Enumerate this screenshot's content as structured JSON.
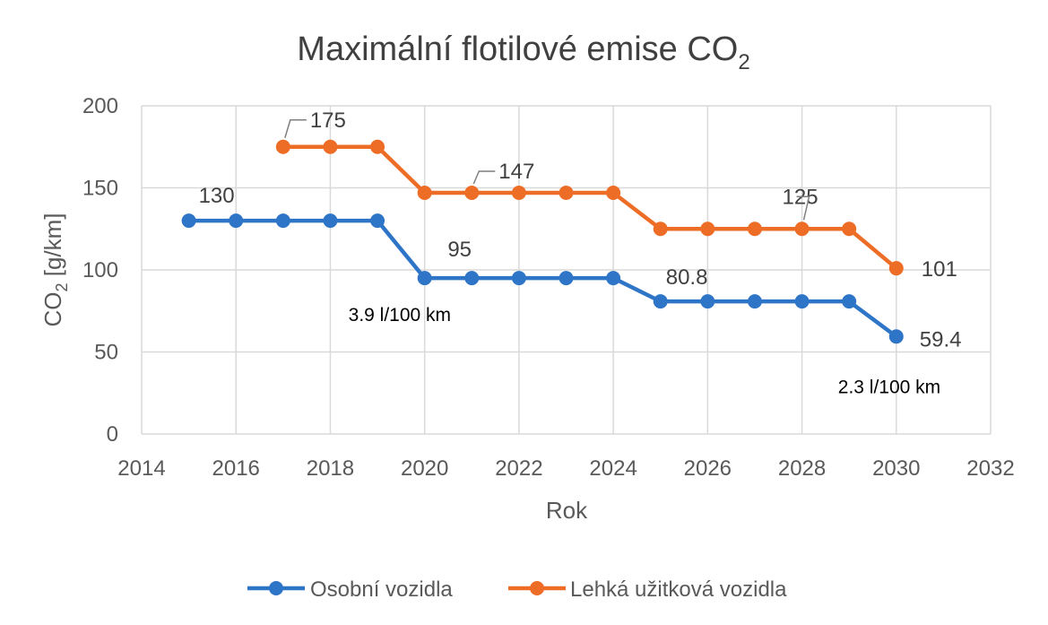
{
  "chart_data": {
    "type": "line",
    "title_main": "Maximální flotilové emise CO",
    "title_sub": "2",
    "xlabel": "Rok",
    "ylabel_main": "CO",
    "ylabel_sub": "2",
    "ylabel_rest": " [g/km]",
    "xlim": [
      2014,
      2032
    ],
    "ylim": [
      0,
      200
    ],
    "x_ticks": [
      "2014",
      "2016",
      "2018",
      "2020",
      "2022",
      "2024",
      "2026",
      "2028",
      "2030",
      "2032"
    ],
    "y_ticks": [
      "0",
      "50",
      "100",
      "150",
      "200"
    ],
    "grid": true,
    "legend_position": "bottom",
    "series": [
      {
        "name": "Osobní vozidla",
        "color": "#2e75c8",
        "x": [
          2015,
          2016,
          2017,
          2018,
          2019,
          2020,
          2021,
          2022,
          2023,
          2024,
          2025,
          2026,
          2027,
          2028,
          2029,
          2030
        ],
        "y": [
          130,
          130,
          130,
          130,
          130,
          95,
          95,
          95,
          95,
          95,
          80.8,
          80.8,
          80.8,
          80.8,
          80.8,
          59.4
        ]
      },
      {
        "name": "Lehká užitková vozidla",
        "color": "#ed6d26",
        "x": [
          2017,
          2018,
          2019,
          2020,
          2021,
          2022,
          2023,
          2024,
          2025,
          2026,
          2027,
          2028,
          2029,
          2030
        ],
        "y": [
          175,
          175,
          175,
          147,
          147,
          147,
          147,
          147,
          125,
          125,
          125,
          125,
          125,
          101
        ]
      }
    ],
    "data_labels": [
      {
        "text": "130",
        "x": 2015,
        "y": 130,
        "leader": false
      },
      {
        "text": "95",
        "x": 2020,
        "y": 95,
        "leader": false
      },
      {
        "text": "80.8",
        "x": 2025,
        "y": 80.8,
        "leader": false
      },
      {
        "text": "59.4",
        "x": 2030,
        "y": 59.4,
        "leader": false
      },
      {
        "text": "175",
        "x": 2017,
        "y": 175,
        "leader": true
      },
      {
        "text": "147",
        "x": 2021,
        "y": 147,
        "leader": true
      },
      {
        "text": "125",
        "x": 2028,
        "y": 125,
        "leader": true
      },
      {
        "text": "101",
        "x": 2030,
        "y": 101,
        "leader": false
      }
    ],
    "annotations": [
      {
        "text": "3.9 l/100 km",
        "near_x": 2020,
        "near_y": 95
      },
      {
        "text": "2.3 l/100 km",
        "near_x": 2030,
        "near_y": 59.4
      }
    ]
  }
}
